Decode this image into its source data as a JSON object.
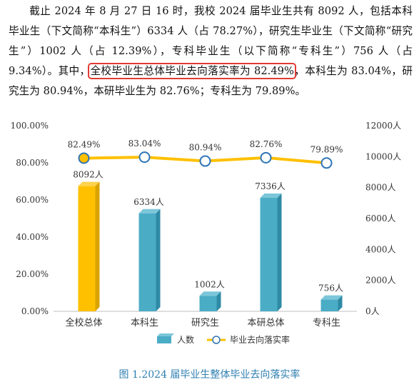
{
  "paragraph": {
    "before": "截止 2024 年 8 月 27 日 16 时，我校 2024 届毕业生共有 8092 人，包括本科毕业生（下文简称“本科生”）6334 人（占 78.27%），研究生毕业生（下文简称“研究生”）1002 人（占 12.39%），专科毕业生（以下简称“专科生”）756 人（占 9.34%）。其中，",
    "highlight": "全校毕业生总体毕业去向落实率为 82.49%",
    "after": "，本科生为 83.04%，研究生为 80.94%，本研毕业生为 82.76%；专科生为 79.89%。"
  },
  "caption": "图 1.2024 届毕业生整体毕业去向落实率",
  "chart_data": {
    "type": "bar",
    "categories": [
      "全校总体",
      "本科生",
      "研究生",
      "本研总体",
      "专科生"
    ],
    "series": [
      {
        "name": "人数",
        "type": "bar",
        "axis": "right",
        "values": [
          8092,
          6334,
          1002,
          7336,
          756
        ],
        "labels": [
          "8092人",
          "6334人",
          "1002人",
          "7336人",
          "756人"
        ]
      },
      {
        "name": "毕业去向落实率",
        "type": "line",
        "axis": "left",
        "values": [
          82.49,
          83.04,
          80.94,
          82.76,
          79.89
        ],
        "labels": [
          "82.49%",
          "83.04%",
          "80.94%",
          "82.76%",
          "79.89%"
        ]
      }
    ],
    "left_axis": {
      "min": 0,
      "max": 100,
      "ticks": [
        "0.00%",
        "20.00%",
        "40.00%",
        "60.00%",
        "80.00%",
        "100.00%"
      ]
    },
    "right_axis": {
      "min": 0,
      "max": 12000,
      "ticks": [
        "0人",
        "2000人",
        "4000人",
        "6000人",
        "8000人",
        "10000人",
        "12000人"
      ]
    },
    "legend_position": "bottom",
    "colors": {
      "bar": "#4bacc6",
      "bar_highlight": "#ffc000",
      "line": "#ffc000",
      "marker_fill": "#ffffff",
      "marker_stroke": "#2e75b6",
      "marker_highlight_fill": "#ffc000"
    }
  }
}
